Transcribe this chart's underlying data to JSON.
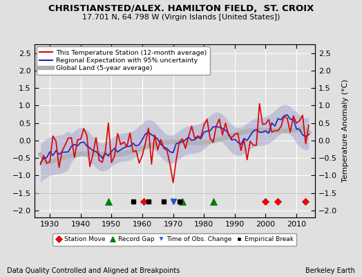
{
  "title": "CHRISTIANSTED/ALEX. HAMILTON FIELD,  ST. CROIX",
  "subtitle": "17.701 N, 64.798 W (Virgin Islands [United States])",
  "footer_left": "Data Quality Controlled and Aligned at Breakpoints",
  "footer_right": "Berkeley Earth",
  "xlim": [
    1925,
    2016
  ],
  "ylim": [
    -2.2,
    2.75
  ],
  "yticks": [
    -2,
    -1.5,
    -1,
    -0.5,
    0,
    0.5,
    1,
    1.5,
    2,
    2.5
  ],
  "xticks": [
    1930,
    1940,
    1950,
    1960,
    1970,
    1980,
    1990,
    2000,
    2010
  ],
  "bg_color": "#e0e0e0",
  "station_moves": [
    1960.5,
    2000,
    2004,
    2013
  ],
  "record_gaps": [
    1949,
    1973,
    1983
  ],
  "time_obs_changes": [
    1970
  ],
  "empirical_breaks": [
    1957,
    1962,
    1967,
    1972
  ],
  "marker_y": -1.75,
  "legend_line1": "This Temperature Station (12-month average)",
  "legend_line2": "Regional Expectation with 95% uncertainty",
  "legend_line3": "Global Land (5-year average)",
  "color_station": "#dd0000",
  "color_regional": "#2222bb",
  "color_global": "#b0b0b0",
  "color_unc_fill": "#9999cc",
  "footer_fontsize": 7,
  "title_fontsize": 9.5,
  "subtitle_fontsize": 8
}
